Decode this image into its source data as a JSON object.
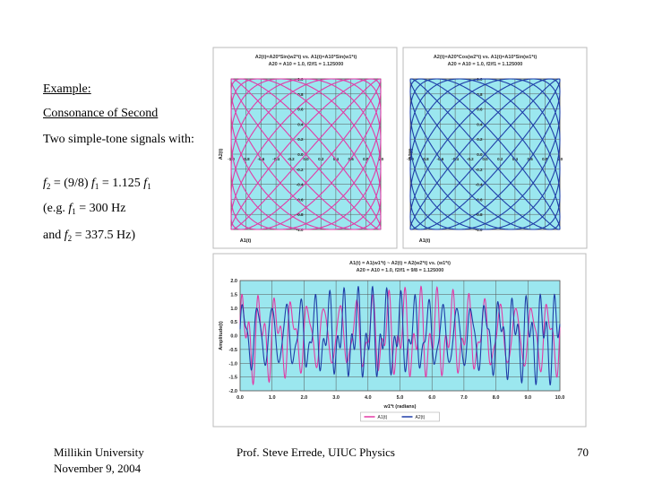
{
  "slide": {
    "example_label": "Example:",
    "title": "Consonance of Second",
    "description": "Two simple-tone signals with:",
    "eq_f2": "f",
    "eq_sub2": "2",
    "eq_mid": " = (9/8) ",
    "eq_f1": "f",
    "eq_sub1": "1",
    "eq_mid2": " = 1.125 ",
    "eq_f1b": "f",
    "eq_sub1b": "1",
    "eg1_pre": "(e.g. ",
    "eg1_f": "f",
    "eg1_sub": "1",
    "eg1_post": " = 300 Hz",
    "eg2_pre": "and ",
    "eg2_f": "f",
    "eg2_sub": "2",
    "eg2_post": " = 337.5 Hz)"
  },
  "footer": {
    "left_line1": "Millikin University",
    "left_line2": "November 9, 2004",
    "center": "Prof. Steve Errede, UIUC Physics",
    "page_number": "70"
  },
  "chart_data": [
    {
      "type": "line",
      "title": "A2(t)=A20*Sin(w2*t) vs. A1(t)=A10*Sin(w1*t)",
      "subtitle": "A20 = A10 = 1.0, f2/f1 = 1.125000",
      "xlabel": "A1(t)",
      "ylabel": "A2(t)",
      "xlim": [
        -1.0,
        1.0
      ],
      "ylim": [
        -1.0,
        1.0
      ],
      "x_ticks": [
        "-1.0",
        "-0.8",
        "-0.6",
        "-0.4",
        "-0.2",
        "0.0",
        "0.2",
        "0.4",
        "0.6",
        "0.8",
        "1.0"
      ],
      "y_ticks": [
        "1.0",
        "0.8",
        "0.6",
        "0.4",
        "0.2",
        "0.0",
        "-0.2",
        "-0.4",
        "-0.6",
        "-0.8",
        "-1.0"
      ],
      "grid": true,
      "curve": {
        "type": "lissajous",
        "ratio": 1.125,
        "phase_deg": 0,
        "color": "#e23ba6"
      },
      "background": "#9be7ef"
    },
    {
      "type": "line",
      "title": "A2(t)=A20*Cos(w2*t) vs. A1(t)=A10*Sin(w1*t)",
      "subtitle": "A20 = A10 = 1.0, f2/f1 = 1.125000",
      "xlabel": "A1(t)",
      "ylabel": "A2(t)",
      "xlim": [
        -1.0,
        1.0
      ],
      "ylim": [
        -1.0,
        1.0
      ],
      "x_ticks": [
        "-1.0",
        "-0.8",
        "-0.6",
        "-0.4",
        "-0.2",
        "0.0",
        "0.2",
        "0.4",
        "0.6",
        "0.8",
        "1.0"
      ],
      "y_ticks": [
        "1.0",
        "0.8",
        "0.6",
        "0.4",
        "0.2",
        "0.0",
        "-0.2",
        "-0.4",
        "-0.6",
        "-0.8",
        "-1.0"
      ],
      "grid": true,
      "curve": {
        "type": "lissajous",
        "ratio": 1.125,
        "phase_deg": 90,
        "color": "#1f3ea8"
      },
      "background": "#9be7ef"
    },
    {
      "type": "line",
      "title": "A1(t) = A1(w1*t) ~ A2(t) = A2(w2*t) vs. (w1*t)",
      "subtitle": "A20 = A10 = 1.0, f2/f1 = 9/8 = 1.125000",
      "xlabel": "w1*t (radians)",
      "ylabel": "Amplitude(t)",
      "xlim": [
        0.0,
        10.0
      ],
      "ylim": [
        -2.0,
        2.0
      ],
      "x_ticks": [
        "0.0",
        "1.0",
        "2.0",
        "3.0",
        "4.0",
        "5.0",
        "6.0",
        "7.0",
        "8.0",
        "9.0",
        "10.0"
      ],
      "y_ticks": [
        "2.0",
        "1.5",
        "1.0",
        "0.5",
        "0.0",
        "-0.5",
        "-1.0",
        "-1.5",
        "-2.0"
      ],
      "grid": true,
      "legend_position": "bottom",
      "series": [
        {
          "name": "A1(t)",
          "color": "#e23ba6",
          "ratio": 1.0,
          "cycles_per_unit": 2.0
        },
        {
          "name": "A2(t)",
          "color": "#1f3ea8",
          "ratio": 1.125,
          "cycles_per_unit": 2.0
        }
      ],
      "background": "#9be7ef"
    }
  ]
}
